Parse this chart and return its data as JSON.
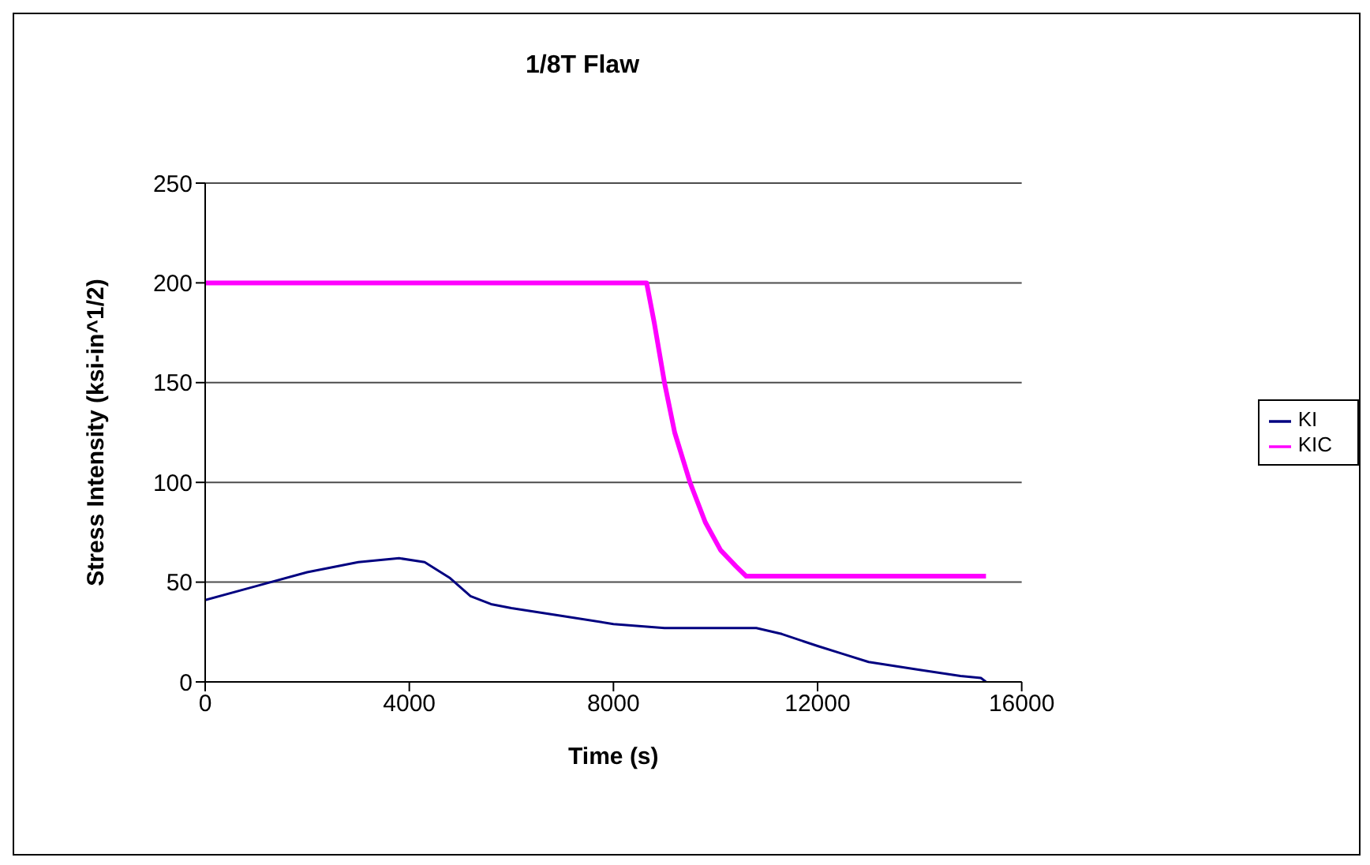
{
  "chart_data": {
    "type": "line",
    "title": "1/8T Flaw",
    "xlabel": "Time (s)",
    "ylabel": "Stress Intensity (ksi-in^1/2)",
    "xlim": [
      0,
      16000
    ],
    "xticks": [
      0,
      4000,
      8000,
      12000,
      16000
    ],
    "ylim": [
      0,
      250
    ],
    "yticks": [
      0,
      50,
      100,
      150,
      200,
      250
    ],
    "grid": "y",
    "legend": "right",
    "series": [
      {
        "name": "KI",
        "color": "#000080",
        "x": [
          0,
          1000,
          2000,
          3000,
          3800,
          4300,
          4800,
          5200,
          5600,
          6000,
          7000,
          8000,
          9000,
          10000,
          10800,
          11300,
          12000,
          12500,
          13000,
          14000,
          14800,
          15200,
          15300
        ],
        "values": [
          41,
          48,
          55,
          60,
          62,
          60,
          52,
          43,
          39,
          37,
          33,
          29,
          27,
          27,
          27,
          24,
          18,
          14,
          10,
          6,
          3,
          2,
          0
        ]
      },
      {
        "name": "KIC",
        "color": "#ff00ff",
        "x": [
          0,
          8650,
          8800,
          9000,
          9200,
          9500,
          9800,
          10100,
          10400,
          10600,
          15300
        ],
        "values": [
          200,
          200,
          180,
          150,
          125,
          100,
          80,
          66,
          58,
          53,
          53
        ]
      }
    ]
  }
}
